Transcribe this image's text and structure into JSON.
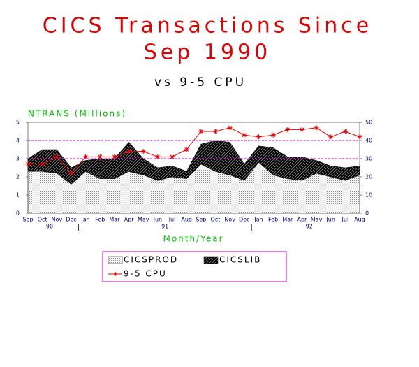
{
  "chart_data": {
    "type": "stacked-area-line",
    "title": [
      "CICS Transactions Since",
      "Sep 1990"
    ],
    "subtitle": "vs 9-5 CPU",
    "y_label": "NTRANS (Millions)",
    "x_label": "Month/Year",
    "categories": [
      "Sep",
      "Oct",
      "Nov",
      "Dec",
      "Jan",
      "Feb",
      "Mar",
      "Apr",
      "May",
      "Jun",
      "Jul",
      "Aug",
      "Sep",
      "Oct",
      "Nov",
      "Dec",
      "Jan",
      "Feb",
      "Mar",
      "Apr",
      "May",
      "Jun",
      "Jul",
      "Aug"
    ],
    "year_groups": [
      {
        "label": "90",
        "months": 4
      },
      {
        "label": "91",
        "months": 12
      },
      {
        "label": "92",
        "months": 8
      }
    ],
    "series": [
      {
        "name": "CICSPROD",
        "color": "#c8c8c8",
        "values": [
          2.3,
          2.3,
          2.2,
          1.6,
          2.3,
          1.9,
          1.9,
          2.3,
          2.1,
          1.8,
          2.0,
          1.9,
          2.7,
          2.3,
          2.1,
          1.8,
          2.8,
          2.1,
          1.9,
          1.8,
          2.2,
          2.0,
          1.8,
          2.1
        ]
      },
      {
        "name": "CICSLIB",
        "color": "#303030",
        "values": [
          0.7,
          1.2,
          1.3,
          0.9,
          0.6,
          1.1,
          1.1,
          1.6,
          0.9,
          0.7,
          0.6,
          0.4,
          1.1,
          1.7,
          1.8,
          0.9,
          0.9,
          1.5,
          1.2,
          1.3,
          0.7,
          0.6,
          0.7,
          0.5
        ]
      },
      {
        "name": "9-5 CPU",
        "color": "#e00000",
        "axis": "y2",
        "values": [
          27,
          27,
          31,
          22,
          31,
          31,
          31,
          34,
          34,
          31,
          31,
          35,
          45,
          45,
          47,
          43,
          42,
          43,
          46,
          46,
          47,
          42,
          45,
          42
        ]
      }
    ],
    "ylim": [
      0,
      5
    ],
    "yticks": [
      0,
      1,
      2,
      3,
      4,
      5
    ],
    "y2lim": [
      0,
      50
    ],
    "y2ticks": [
      0,
      10,
      20,
      30,
      40,
      50
    ],
    "y2_reference_lines": [
      30,
      40
    ],
    "reference_color": "#c000c0"
  }
}
